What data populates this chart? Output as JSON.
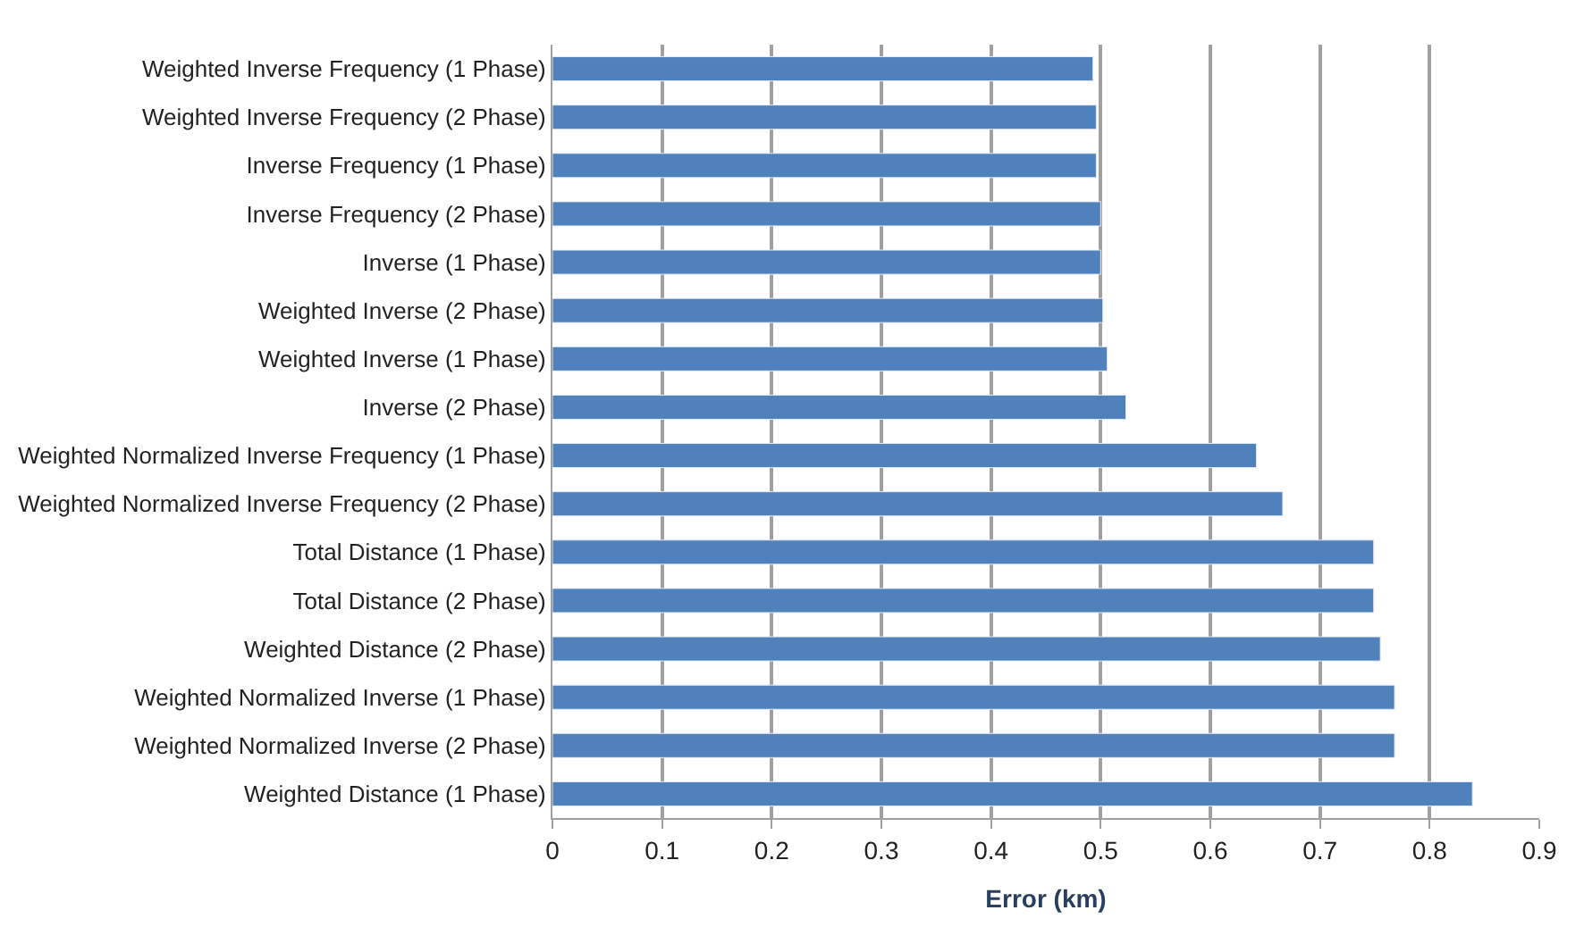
{
  "chart_data": {
    "type": "bar",
    "orientation": "horizontal",
    "xlabel": "Error (km)",
    "categories": [
      "Weighted Inverse Frequency (1 Phase)",
      "Weighted Inverse Frequency (2 Phase)",
      "Inverse Frequency (1 Phase)",
      "Inverse Frequency (2 Phase)",
      "Inverse (1 Phase)",
      "Weighted Inverse (2 Phase)",
      "Weighted Inverse (1 Phase)",
      "Inverse (2 Phase)",
      "Weighted Normalized Inverse Frequency (1 Phase)",
      "Weighted Normalized Inverse Frequency (2 Phase)",
      "Total Distance (1 Phase)",
      "Total Distance (2 Phase)",
      "Weighted Distance (2 Phase)",
      "Weighted Normalized Inverse (1 Phase)",
      "Weighted Normalized Inverse (2 Phase)",
      "Weighted Distance (1 Phase)"
    ],
    "values": [
      0.493,
      0.496,
      0.496,
      0.5,
      0.5,
      0.502,
      0.506,
      0.523,
      0.642,
      0.666,
      0.749,
      0.749,
      0.755,
      0.768,
      0.768,
      0.839
    ],
    "color": "#4f81bd",
    "xlim": [
      0,
      0.9
    ],
    "xticks": [
      0,
      0.1,
      0.2,
      0.3,
      0.4,
      0.5,
      0.6,
      0.7,
      0.8,
      0.9
    ],
    "grid": "x"
  }
}
